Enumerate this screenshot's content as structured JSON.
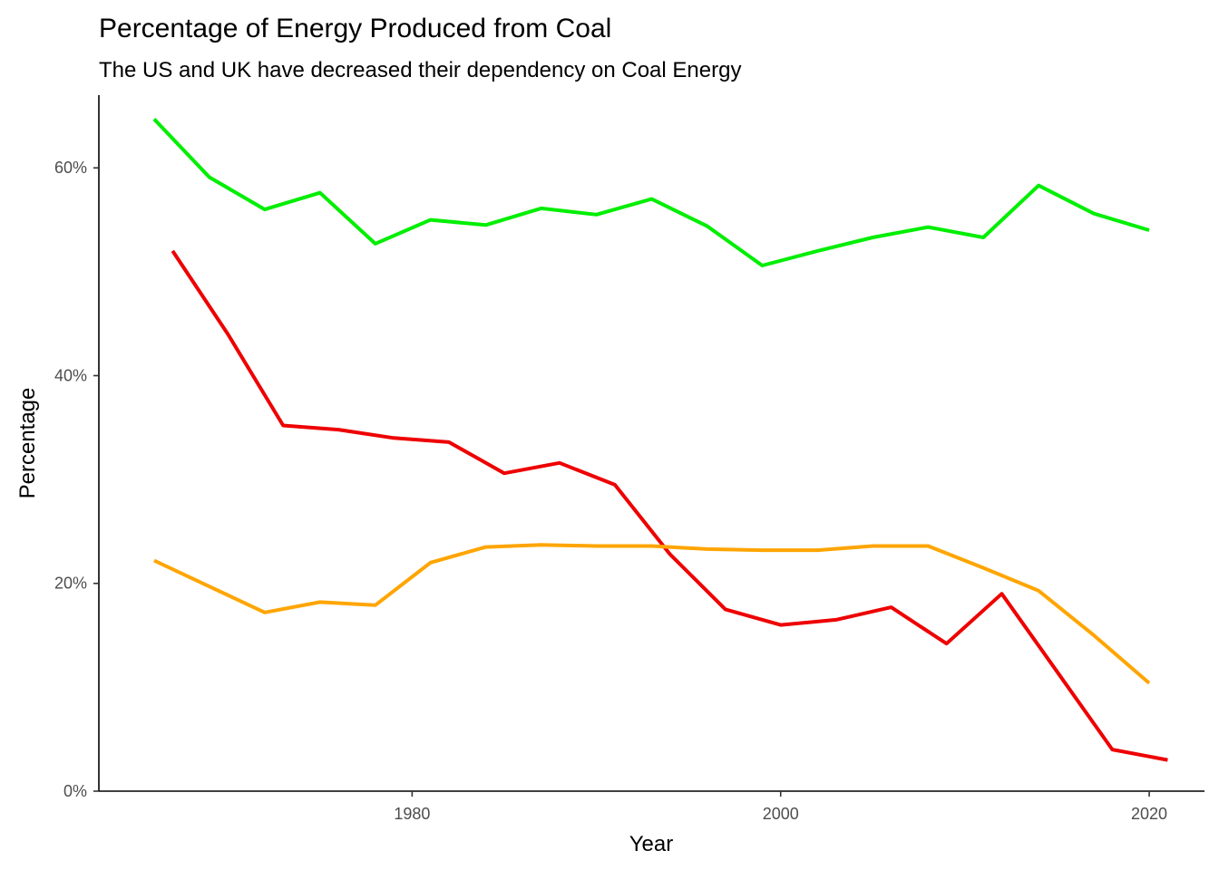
{
  "chart_data": {
    "type": "line",
    "title": "Percentage of Energy Produced from Coal",
    "subtitle": "The US and UK have decreased their dependency on Coal Energy",
    "xlabel": "Year",
    "ylabel": "Percentage",
    "xlim": [
      1963,
      2023
    ],
    "ylim": [
      0,
      67
    ],
    "x_ticks": [
      1980,
      2000,
      2020
    ],
    "x_tick_labels": [
      "1980",
      "2000",
      "2020"
    ],
    "y_ticks": [
      0,
      20,
      40,
      60
    ],
    "y_tick_labels": [
      "0%",
      "20%",
      "40%",
      "60%"
    ],
    "grid": false,
    "legend": "none",
    "series": [
      {
        "color": "#00ee00",
        "points": [
          [
            1966,
            64.7
          ],
          [
            1969,
            59.1
          ],
          [
            1972,
            56.0
          ],
          [
            1975,
            57.6
          ],
          [
            1978,
            52.7
          ],
          [
            1981,
            55.0
          ],
          [
            1984,
            54.5
          ],
          [
            1987,
            56.1
          ],
          [
            1990,
            55.5
          ],
          [
            1993,
            57.0
          ],
          [
            1996,
            54.4
          ],
          [
            1999,
            50.6
          ],
          [
            2002,
            52.0
          ],
          [
            2005,
            53.3
          ],
          [
            2008,
            54.3
          ],
          [
            2011,
            53.3
          ],
          [
            2014,
            58.3
          ],
          [
            2017,
            55.6
          ],
          [
            2020,
            54.0
          ]
        ]
      },
      {
        "color": "#ee0000",
        "points": [
          [
            1967,
            52.0
          ],
          [
            1970,
            44.0
          ],
          [
            1973,
            35.2
          ],
          [
            1976,
            34.8
          ],
          [
            1979,
            34.0
          ],
          [
            1982,
            33.6
          ],
          [
            1985,
            30.6
          ],
          [
            1988,
            31.6
          ],
          [
            1991,
            29.5
          ],
          [
            1994,
            22.8
          ],
          [
            1997,
            17.5
          ],
          [
            2000,
            16.0
          ],
          [
            2003,
            16.5
          ],
          [
            2006,
            17.7
          ],
          [
            2009,
            14.2
          ],
          [
            2012,
            19.0
          ],
          [
            2015,
            11.5
          ],
          [
            2018,
            4.0
          ],
          [
            2021,
            3.0
          ]
        ]
      },
      {
        "color": "#ffa500",
        "points": [
          [
            1966,
            22.2
          ],
          [
            1969,
            19.7
          ],
          [
            1972,
            17.2
          ],
          [
            1975,
            18.2
          ],
          [
            1978,
            17.9
          ],
          [
            1981,
            22.0
          ],
          [
            1984,
            23.5
          ],
          [
            1987,
            23.7
          ],
          [
            1990,
            23.6
          ],
          [
            1993,
            23.6
          ],
          [
            1996,
            23.3
          ],
          [
            1999,
            23.2
          ],
          [
            2002,
            23.2
          ],
          [
            2005,
            23.6
          ],
          [
            2008,
            23.6
          ],
          [
            2011,
            21.5
          ],
          [
            2014,
            19.3
          ],
          [
            2017,
            15.0
          ],
          [
            2020,
            10.4
          ]
        ]
      }
    ]
  }
}
